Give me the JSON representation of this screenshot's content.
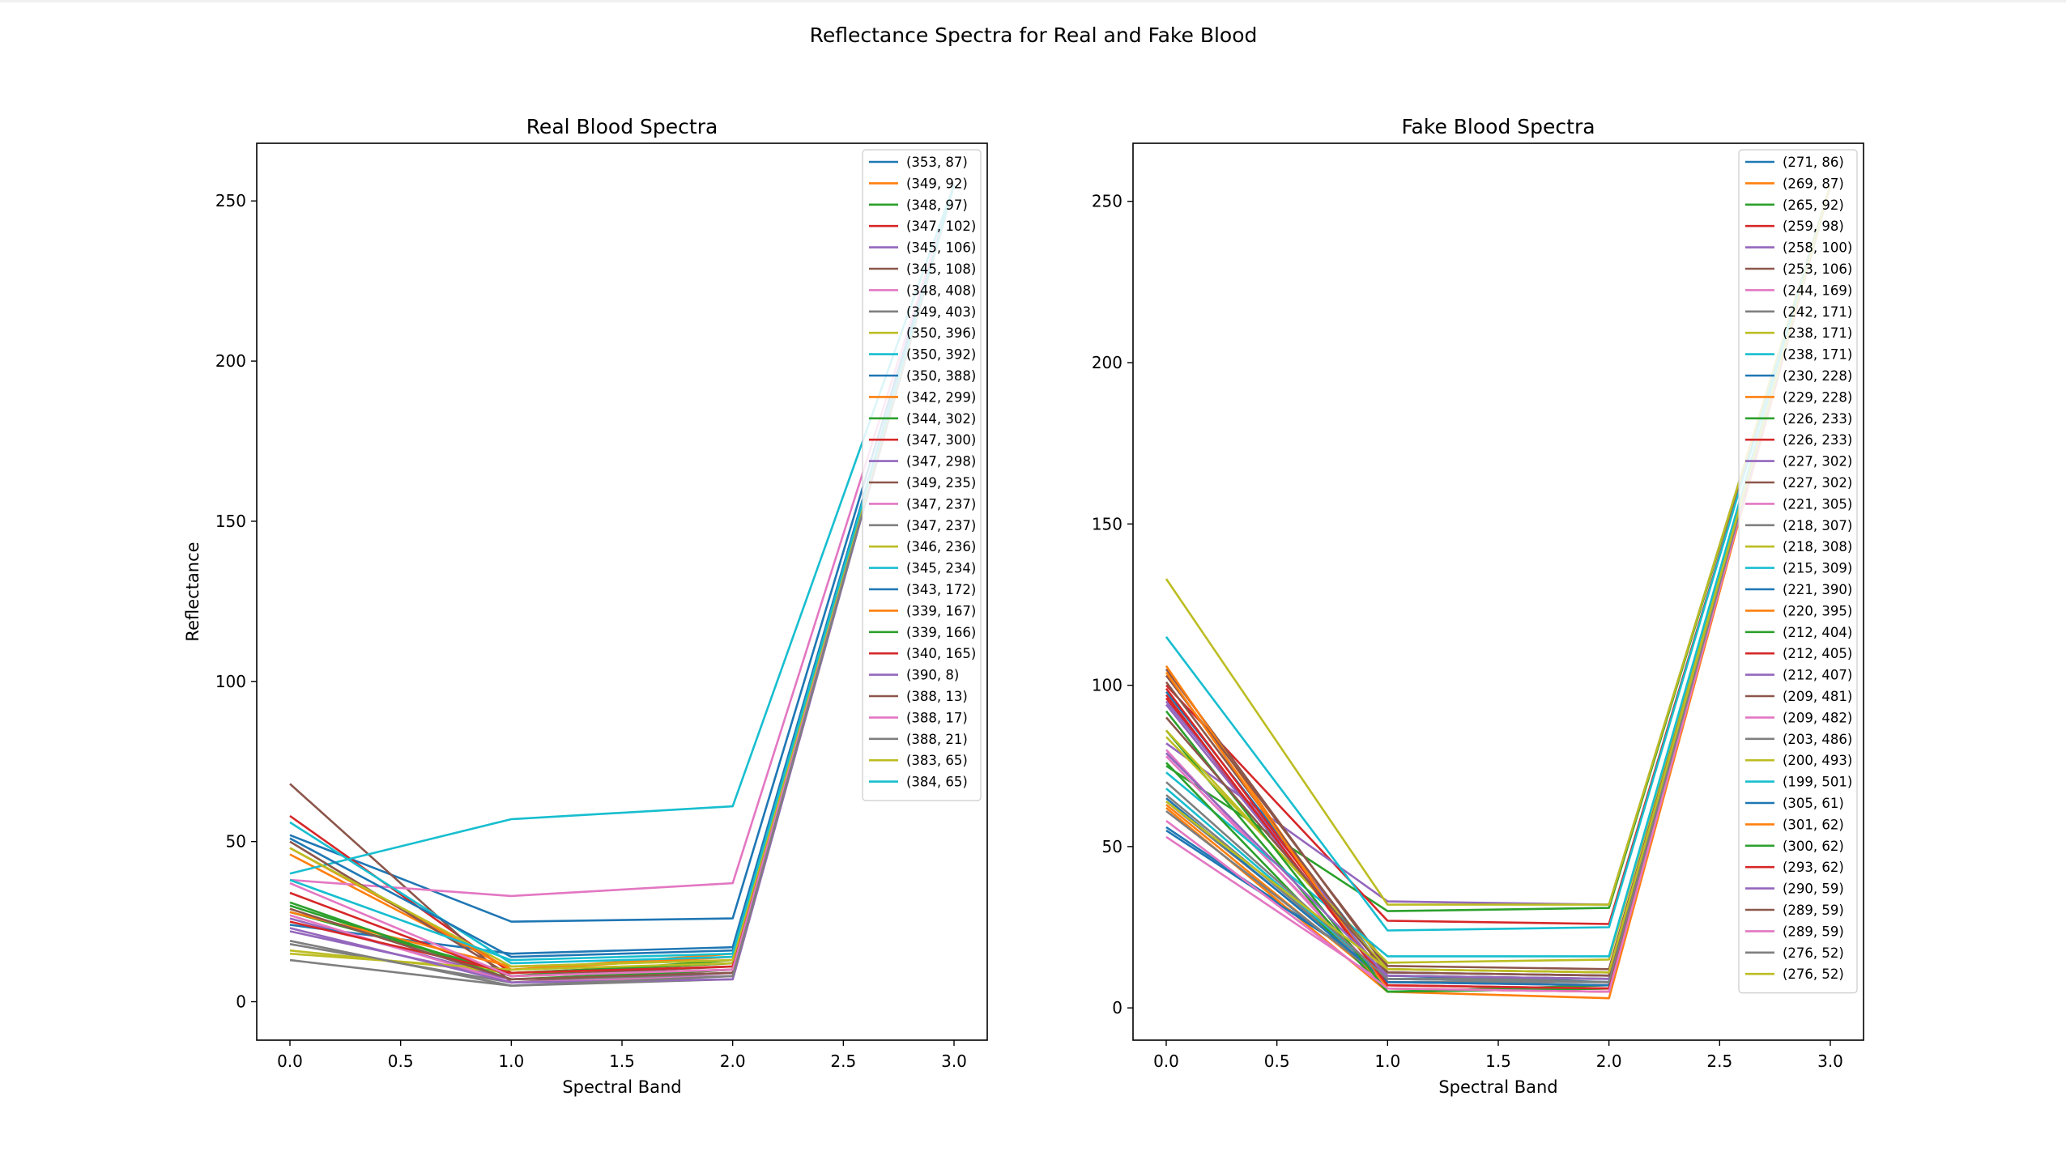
{
  "figure_title": "Reflectance Spectra for Real and Fake Blood",
  "chart_data": [
    {
      "type": "line",
      "title": "Real Blood Spectra",
      "xlabel": "Spectral Band",
      "ylabel": "Reflectance",
      "xlim": [
        -0.15,
        3.15
      ],
      "ylim": [
        -12,
        268
      ],
      "xticks": [
        0.0,
        0.5,
        1.0,
        1.5,
        2.0,
        2.5,
        3.0
      ],
      "xtick_labels": [
        "0.0",
        "0.5",
        "1.0",
        "1.5",
        "2.0",
        "2.5",
        "3.0"
      ],
      "yticks": [
        0,
        50,
        100,
        150,
        200,
        250
      ],
      "ytick_labels": [
        "0",
        "50",
        "100",
        "150",
        "200",
        "250"
      ],
      "x": [
        0,
        1,
        2,
        3
      ],
      "legend_position": "top-right",
      "series": [
        {
          "name": "(353, 87)",
          "values": [
            52,
            25,
            26,
            255
          ]
        },
        {
          "name": "(349, 92)",
          "values": [
            46,
            10,
            15,
            255
          ]
        },
        {
          "name": "(348, 97)",
          "values": [
            30,
            8,
            13,
            255
          ]
        },
        {
          "name": "(347, 102)",
          "values": [
            58,
            9,
            12,
            255
          ]
        },
        {
          "name": "(345, 106)",
          "values": [
            26,
            7,
            8,
            255
          ]
        },
        {
          "name": "(345, 108)",
          "values": [
            68,
            6,
            10,
            255
          ]
        },
        {
          "name": "(348, 408)",
          "values": [
            38,
            33,
            37,
            255
          ]
        },
        {
          "name": "(349, 403)",
          "values": [
            18,
            6,
            9,
            255
          ]
        },
        {
          "name": "(350, 396)",
          "values": [
            16,
            9,
            11,
            255
          ]
        },
        {
          "name": "(350, 392)",
          "values": [
            40,
            57,
            61,
            255
          ]
        },
        {
          "name": "(350, 388)",
          "values": [
            24,
            15,
            17,
            255
          ]
        },
        {
          "name": "(342, 299)",
          "values": [
            48,
            10,
            14,
            255
          ]
        },
        {
          "name": "(344, 302)",
          "values": [
            28,
            9,
            12,
            255
          ]
        },
        {
          "name": "(347, 300)",
          "values": [
            34,
            8,
            10,
            255
          ]
        },
        {
          "name": "(347, 298)",
          "values": [
            22,
            7,
            9,
            255
          ]
        },
        {
          "name": "(349, 235)",
          "values": [
            50,
            8,
            11,
            255
          ]
        },
        {
          "name": "(347, 237)",
          "values": [
            27,
            6,
            8,
            255
          ]
        },
        {
          "name": "(347, 237)",
          "values": [
            13,
            5,
            7,
            255
          ]
        },
        {
          "name": "(346, 236)",
          "values": [
            15,
            10,
            12,
            255
          ]
        },
        {
          "name": "(345, 234)",
          "values": [
            56,
            12,
            14,
            255
          ]
        },
        {
          "name": "(343, 172)",
          "values": [
            51,
            14,
            16,
            255
          ]
        },
        {
          "name": "(339, 167)",
          "values": [
            28,
            11,
            13,
            255
          ]
        },
        {
          "name": "(339, 166)",
          "values": [
            31,
            7,
            10,
            255
          ]
        },
        {
          "name": "(340, 165)",
          "values": [
            25,
            9,
            11,
            255
          ]
        },
        {
          "name": "(390, 8)",
          "values": [
            23,
            6,
            7,
            255
          ]
        },
        {
          "name": "(388, 13)",
          "values": [
            29,
            7,
            9,
            255
          ]
        },
        {
          "name": "(388, 17)",
          "values": [
            37,
            8,
            10,
            255
          ]
        },
        {
          "name": "(388, 21)",
          "values": [
            19,
            5,
            8,
            255
          ]
        },
        {
          "name": "(383, 65)",
          "values": [
            48,
            11,
            13,
            255
          ]
        },
        {
          "name": "(384, 65)",
          "values": [
            38,
            13,
            15,
            255
          ]
        }
      ]
    },
    {
      "type": "line",
      "title": "Fake Blood Spectra",
      "xlabel": "Spectral Band",
      "ylabel": "",
      "xlim": [
        -0.15,
        3.15
      ],
      "ylim": [
        -10,
        268
      ],
      "xticks": [
        0.0,
        0.5,
        1.0,
        1.5,
        2.0,
        2.5,
        3.0
      ],
      "xtick_labels": [
        "0.0",
        "0.5",
        "1.0",
        "1.5",
        "2.0",
        "2.5",
        "3.0"
      ],
      "yticks": [
        0,
        50,
        100,
        150,
        200,
        250
      ],
      "ytick_labels": [
        "0",
        "50",
        "100",
        "150",
        "200",
        "250"
      ],
      "x": [
        0,
        1,
        2,
        3
      ],
      "legend_position": "top-right",
      "series": [
        {
          "name": "(271, 86)",
          "values": [
            56,
            10,
            8,
            255
          ]
        },
        {
          "name": "(269, 87)",
          "values": [
            62,
            5,
            3,
            255
          ]
        },
        {
          "name": "(265, 92)",
          "values": [
            75,
            30,
            31,
            255
          ]
        },
        {
          "name": "(259, 98)",
          "values": [
            100,
            27,
            26,
            255
          ]
        },
        {
          "name": "(258, 100)",
          "values": [
            82,
            33,
            32,
            255
          ]
        },
        {
          "name": "(253, 106)",
          "values": [
            105,
            12,
            11,
            255
          ]
        },
        {
          "name": "(244, 169)",
          "values": [
            78,
            8,
            7,
            255
          ]
        },
        {
          "name": "(242, 171)",
          "values": [
            64,
            9,
            8,
            255
          ]
        },
        {
          "name": "(238, 171)",
          "values": [
            133,
            32,
            32,
            255
          ]
        },
        {
          "name": "(238, 171)",
          "values": [
            115,
            24,
            25,
            255
          ]
        },
        {
          "name": "(230, 228)",
          "values": [
            98,
            11,
            10,
            255
          ]
        },
        {
          "name": "(229, 228)",
          "values": [
            106,
            6,
            5,
            255
          ]
        },
        {
          "name": "(226, 233)",
          "values": [
            86,
            5,
            6,
            255
          ]
        },
        {
          "name": "(226, 233)",
          "values": [
            96,
            7,
            6,
            255
          ]
        },
        {
          "name": "(227, 302)",
          "values": [
            95,
            11,
            10,
            255
          ]
        },
        {
          "name": "(227, 302)",
          "values": [
            103,
            13,
            12,
            255
          ]
        },
        {
          "name": "(221, 305)",
          "values": [
            80,
            6,
            5,
            255
          ]
        },
        {
          "name": "(218, 307)",
          "values": [
            66,
            9,
            9,
            255
          ]
        },
        {
          "name": "(218, 308)",
          "values": [
            84,
            14,
            15,
            255
          ]
        },
        {
          "name": "(215, 309)",
          "values": [
            73,
            16,
            16,
            255
          ]
        },
        {
          "name": "(221, 390)",
          "values": [
            55,
            10,
            9,
            255
          ]
        },
        {
          "name": "(220, 395)",
          "values": [
            63,
            7,
            6,
            255
          ]
        },
        {
          "name": "(212, 404)",
          "values": [
            76,
            5,
            7,
            255
          ]
        },
        {
          "name": "(212, 405)",
          "values": [
            99,
            8,
            7,
            255
          ]
        },
        {
          "name": "(212, 407)",
          "values": [
            94,
            9,
            8,
            255
          ]
        },
        {
          "name": "(209, 481)",
          "values": [
            101,
            10,
            9,
            255
          ]
        },
        {
          "name": "(209, 482)",
          "values": [
            53,
            7,
            6,
            255
          ]
        },
        {
          "name": "(203, 486)",
          "values": [
            61,
            8,
            8,
            255
          ]
        },
        {
          "name": "(200, 493)",
          "values": [
            86,
            12,
            11,
            255
          ]
        },
        {
          "name": "(199, 501)",
          "values": [
            68,
            9,
            8,
            255
          ]
        },
        {
          "name": "(305, 61)",
          "values": [
            65,
            8,
            7,
            255
          ]
        },
        {
          "name": "(301, 62)",
          "values": [
            104,
            6,
            5,
            255
          ]
        },
        {
          "name": "(300, 62)",
          "values": [
            92,
            5,
            6,
            255
          ]
        },
        {
          "name": "(293, 62)",
          "values": [
            97,
            7,
            6,
            255
          ]
        },
        {
          "name": "(290, 59)",
          "values": [
            79,
            10,
            9,
            255
          ]
        },
        {
          "name": "(289, 59)",
          "values": [
            90,
            11,
            10,
            255
          ]
        },
        {
          "name": "(289, 59)",
          "values": [
            58,
            6,
            5,
            255
          ]
        },
        {
          "name": "(276, 52)",
          "values": [
            70,
            9,
            8,
            255
          ]
        },
        {
          "name": "(276, 52)",
          "values": [
            64,
            12,
            11,
            255
          ]
        }
      ]
    }
  ],
  "colors": [
    "#1f77b4",
    "#ff7f0e",
    "#2ca02c",
    "#d62728",
    "#9467bd",
    "#8c564b",
    "#e377c2",
    "#7f7f7f",
    "#bcbd22",
    "#17becf"
  ]
}
